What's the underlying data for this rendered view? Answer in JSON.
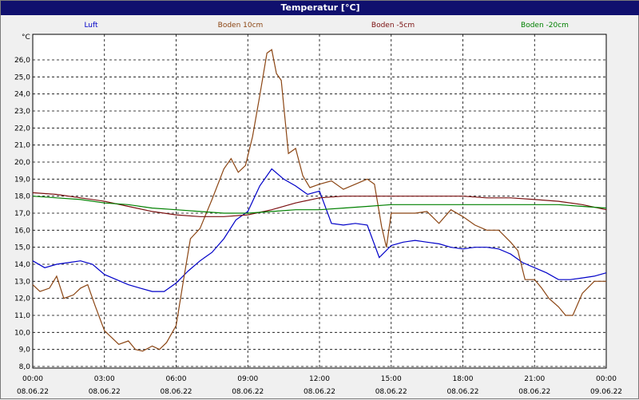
{
  "window": {
    "title": "Temperatur [°C]"
  },
  "chart_data": {
    "type": "line",
    "title": "Temperatur [°C]",
    "ylabel": "°C",
    "ylim": [
      8.0,
      27.0
    ],
    "yticks": [
      "8,0",
      "9,0",
      "10,0",
      "11,0",
      "12,0",
      "13,0",
      "14,0",
      "15,0",
      "16,0",
      "17,0",
      "18,0",
      "19,0",
      "20,0",
      "21,0",
      "22,0",
      "23,0",
      "24,0",
      "25,0",
      "26,0"
    ],
    "xlim": [
      0,
      24
    ],
    "xticks": [
      {
        "time": "00:00",
        "date": "08.06.22"
      },
      {
        "time": "03:00",
        "date": "08.06.22"
      },
      {
        "time": "06:00",
        "date": "08.06.22"
      },
      {
        "time": "09:00",
        "date": "08.06.22"
      },
      {
        "time": "12:00",
        "date": "08.06.22"
      },
      {
        "time": "15:00",
        "date": "08.06.22"
      },
      {
        "time": "18:00",
        "date": "08.06.22"
      },
      {
        "time": "21:00",
        "date": "08.06.22"
      },
      {
        "time": "00:00",
        "date": "09.06.22"
      }
    ],
    "grid": true,
    "legend_position": "top",
    "series": [
      {
        "name": "Luft",
        "color": "#0000c8",
        "points": [
          [
            0,
            14.2
          ],
          [
            0.5,
            13.8
          ],
          [
            1,
            14.0
          ],
          [
            1.5,
            14.1
          ],
          [
            2,
            14.2
          ],
          [
            2.5,
            14.0
          ],
          [
            3,
            13.4
          ],
          [
            3.5,
            13.1
          ],
          [
            4,
            12.8
          ],
          [
            4.5,
            12.6
          ],
          [
            5,
            12.4
          ],
          [
            5.5,
            12.4
          ],
          [
            6,
            12.9
          ],
          [
            6.5,
            13.6
          ],
          [
            7,
            14.2
          ],
          [
            7.5,
            14.7
          ],
          [
            8,
            15.5
          ],
          [
            8.5,
            16.6
          ],
          [
            9,
            17.1
          ],
          [
            9.5,
            18.6
          ],
          [
            10,
            19.6
          ],
          [
            10.5,
            19.0
          ],
          [
            11,
            18.6
          ],
          [
            11.5,
            18.1
          ],
          [
            12,
            18.3
          ],
          [
            12.5,
            16.4
          ],
          [
            13,
            16.3
          ],
          [
            13.5,
            16.4
          ],
          [
            14,
            16.3
          ],
          [
            14.5,
            14.4
          ],
          [
            15,
            15.1
          ],
          [
            15.5,
            15.3
          ],
          [
            16,
            15.4
          ],
          [
            16.5,
            15.3
          ],
          [
            17,
            15.2
          ],
          [
            17.5,
            15.0
          ],
          [
            18,
            14.9
          ],
          [
            18.5,
            15.0
          ],
          [
            19,
            15.0
          ],
          [
            19.5,
            14.9
          ],
          [
            20,
            14.6
          ],
          [
            20.5,
            14.1
          ],
          [
            21,
            13.8
          ],
          [
            21.5,
            13.5
          ],
          [
            22,
            13.1
          ],
          [
            22.5,
            13.1
          ],
          [
            23,
            13.2
          ],
          [
            23.5,
            13.3
          ],
          [
            24,
            13.5
          ]
        ]
      },
      {
        "name": "Boden 10cm",
        "color": "#8b4513",
        "points": [
          [
            0,
            12.8
          ],
          [
            0.3,
            12.4
          ],
          [
            0.7,
            12.6
          ],
          [
            1,
            13.3
          ],
          [
            1.3,
            12.0
          ],
          [
            1.7,
            12.2
          ],
          [
            2,
            12.6
          ],
          [
            2.3,
            12.8
          ],
          [
            2.6,
            11.6
          ],
          [
            3,
            10.1
          ],
          [
            3.3,
            9.7
          ],
          [
            3.6,
            9.3
          ],
          [
            4,
            9.5
          ],
          [
            4.3,
            9.0
          ],
          [
            4.6,
            8.9
          ],
          [
            5,
            9.2
          ],
          [
            5.3,
            9.0
          ],
          [
            5.6,
            9.4
          ],
          [
            6,
            10.4
          ],
          [
            6.3,
            13.0
          ],
          [
            6.6,
            15.5
          ],
          [
            7,
            16.1
          ],
          [
            7.5,
            17.8
          ],
          [
            8,
            19.6
          ],
          [
            8.3,
            20.2
          ],
          [
            8.6,
            19.4
          ],
          [
            8.9,
            19.8
          ],
          [
            9.2,
            21.5
          ],
          [
            9.5,
            23.9
          ],
          [
            9.8,
            26.4
          ],
          [
            10.0,
            26.6
          ],
          [
            10.2,
            25.2
          ],
          [
            10.4,
            24.8
          ],
          [
            10.7,
            20.5
          ],
          [
            11,
            20.8
          ],
          [
            11.3,
            19.2
          ],
          [
            11.6,
            18.5
          ],
          [
            12,
            18.7
          ],
          [
            12.5,
            18.9
          ],
          [
            13,
            18.4
          ],
          [
            13.5,
            18.7
          ],
          [
            14,
            19.0
          ],
          [
            14.3,
            18.7
          ],
          [
            14.6,
            16.2
          ],
          [
            14.8,
            15.0
          ],
          [
            15,
            17.0
          ],
          [
            15.5,
            17.0
          ],
          [
            16,
            17.0
          ],
          [
            16.5,
            17.1
          ],
          [
            17,
            16.4
          ],
          [
            17.5,
            17.2
          ],
          [
            18,
            16.8
          ],
          [
            18.5,
            16.3
          ],
          [
            19,
            16.0
          ],
          [
            19.5,
            16.0
          ],
          [
            20,
            15.3
          ],
          [
            20.3,
            14.8
          ],
          [
            20.6,
            13.1
          ],
          [
            21,
            13.1
          ],
          [
            21.3,
            12.6
          ],
          [
            21.6,
            12.0
          ],
          [
            22,
            11.5
          ],
          [
            22.3,
            11.0
          ],
          [
            22.6,
            11.0
          ],
          [
            23,
            12.3
          ],
          [
            23.5,
            13.0
          ],
          [
            24,
            13.0
          ]
        ]
      },
      {
        "name": "Boden -5cm",
        "color": "#7a1010",
        "points": [
          [
            0,
            18.2
          ],
          [
            1,
            18.1
          ],
          [
            2,
            17.9
          ],
          [
            3,
            17.7
          ],
          [
            4,
            17.4
          ],
          [
            5,
            17.1
          ],
          [
            6,
            16.9
          ],
          [
            7,
            16.8
          ],
          [
            8,
            16.8
          ],
          [
            9,
            16.9
          ],
          [
            10,
            17.2
          ],
          [
            11,
            17.6
          ],
          [
            12,
            17.9
          ],
          [
            13,
            18.0
          ],
          [
            14,
            18.0
          ],
          [
            15,
            18.0
          ],
          [
            16,
            18.0
          ],
          [
            17,
            18.0
          ],
          [
            18,
            18.0
          ],
          [
            19,
            17.9
          ],
          [
            20,
            17.9
          ],
          [
            21,
            17.8
          ],
          [
            22,
            17.7
          ],
          [
            23,
            17.5
          ],
          [
            24,
            17.2
          ]
        ]
      },
      {
        "name": "Boden -20cm",
        "color": "#008000",
        "points": [
          [
            0,
            18.0
          ],
          [
            1,
            17.9
          ],
          [
            2,
            17.8
          ],
          [
            3,
            17.6
          ],
          [
            4,
            17.5
          ],
          [
            5,
            17.3
          ],
          [
            6,
            17.2
          ],
          [
            7,
            17.1
          ],
          [
            8,
            17.0
          ],
          [
            9,
            17.0
          ],
          [
            10,
            17.1
          ],
          [
            11,
            17.2
          ],
          [
            12,
            17.2
          ],
          [
            13,
            17.3
          ],
          [
            14,
            17.4
          ],
          [
            15,
            17.5
          ],
          [
            16,
            17.5
          ],
          [
            17,
            17.5
          ],
          [
            18,
            17.5
          ],
          [
            19,
            17.5
          ],
          [
            20,
            17.5
          ],
          [
            21,
            17.5
          ],
          [
            22,
            17.5
          ],
          [
            23,
            17.4
          ],
          [
            24,
            17.3
          ]
        ]
      }
    ]
  }
}
